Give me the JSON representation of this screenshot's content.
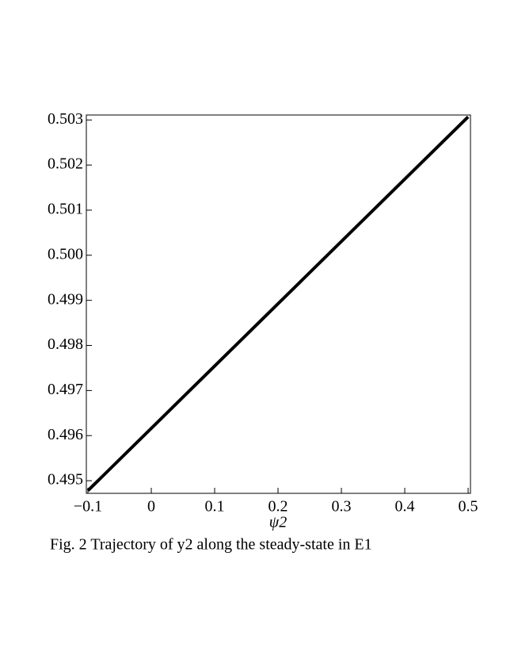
{
  "chart_data": {
    "type": "line",
    "x_label": "ψ2",
    "caption": "Fig. 2  Trajectory of y2 along the steady-state in E1",
    "x": [
      -0.1,
      0.5
    ],
    "values": [
      0.49478,
      0.50307
    ],
    "color": "#000000",
    "xlim": [
      -0.1025,
      0.5037
    ],
    "ylim": [
      0.49472,
      0.50311
    ],
    "xticks": [
      {
        "value": -0.1,
        "label": "−0.1"
      },
      0,
      0.1,
      0.2,
      0.3,
      0.4,
      0.5
    ],
    "yticks": [
      0.495,
      0.496,
      0.497,
      0.498,
      0.499,
      {
        "value": 0.5,
        "label": "0.500"
      },
      0.501,
      0.502,
      0.503
    ],
    "grid": false
  }
}
